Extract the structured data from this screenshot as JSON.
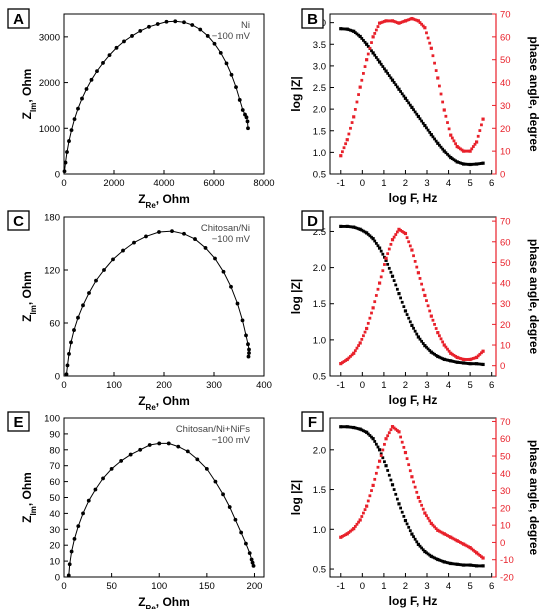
{
  "colors": {
    "magnitude": "#000000",
    "phase": "#e8202a",
    "nyquist": "#000000"
  },
  "chart_data": [
    {
      "panel": "A",
      "type": "scatter",
      "line": true,
      "annotation": [
        "Ni",
        "−100 mV"
      ],
      "xlabel": {
        "main": "Z",
        "sub": "Re",
        "unit": ", Ohm"
      },
      "ylabel": {
        "main": "Z",
        "sub": "Im",
        "unit": ", Ohm"
      },
      "xlim": [
        0,
        8000
      ],
      "ylim": [
        0,
        3500
      ],
      "xticks": [
        0,
        2000,
        4000,
        6000,
        8000
      ],
      "yticks": [
        0,
        1000,
        2000,
        3000
      ],
      "x": [
        20,
        60,
        120,
        200,
        300,
        420,
        560,
        720,
        900,
        1100,
        1320,
        1560,
        1820,
        2100,
        2400,
        2720,
        3050,
        3400,
        3750,
        4100,
        4450,
        4800,
        5130,
        5450,
        5750,
        6020,
        6270,
        6500,
        6700,
        6880,
        7030,
        7150,
        7240,
        7300,
        7340,
        7360
      ],
      "y": [
        60,
        250,
        480,
        720,
        960,
        1200,
        1430,
        1650,
        1860,
        2060,
        2250,
        2430,
        2600,
        2760,
        2900,
        3020,
        3130,
        3220,
        3280,
        3330,
        3340,
        3320,
        3260,
        3160,
        3020,
        2850,
        2650,
        2420,
        2170,
        1900,
        1620,
        1400,
        1300,
        1240,
        1150,
        1000
      ]
    },
    {
      "panel": "B",
      "type": "scatter",
      "xlabel": "log F, Hz",
      "ylabel": "log |Z|",
      "ylabel2": "phase angle, degree",
      "xlim": [
        -1.5,
        6.2
      ],
      "ylim": [
        0.5,
        4.2
      ],
      "y2lim": [
        0,
        70
      ],
      "xticks": [
        -1,
        0,
        1,
        2,
        3,
        4,
        5,
        6
      ],
      "yticks": [
        0.5,
        1.0,
        1.5,
        2.0,
        2.5,
        3.0,
        3.5,
        4.0
      ],
      "y2ticks": [
        0,
        10,
        20,
        30,
        40,
        50,
        60,
        70
      ],
      "series": [
        {
          "axis": "left",
          "x": [
            -1,
            -0.7,
            -0.4,
            -0.1,
            0.2,
            0.5,
            0.8,
            1.1,
            1.4,
            1.7,
            2.0,
            2.3,
            2.6,
            2.9,
            3.2,
            3.5,
            3.8,
            4.1,
            4.4,
            4.7,
            5.0,
            5.3,
            5.6
          ],
          "y": [
            3.86,
            3.85,
            3.8,
            3.68,
            3.5,
            3.3,
            3.09,
            2.88,
            2.67,
            2.46,
            2.25,
            2.04,
            1.83,
            1.62,
            1.41,
            1.21,
            1.03,
            0.88,
            0.78,
            0.73,
            0.72,
            0.73,
            0.75
          ]
        },
        {
          "axis": "right",
          "x": [
            -1,
            -0.7,
            -0.4,
            -0.1,
            0.2,
            0.5,
            0.8,
            1.1,
            1.4,
            1.7,
            2.0,
            2.3,
            2.6,
            2.9,
            3.2,
            3.5,
            3.8,
            4.1,
            4.4,
            4.7,
            5.0,
            5.3,
            5.6
          ],
          "y": [
            8,
            15,
            25,
            38,
            50,
            60,
            66,
            67,
            67,
            66,
            67,
            68,
            67,
            64,
            55,
            42,
            28,
            17,
            12,
            10,
            10,
            14,
            24
          ]
        }
      ]
    },
    {
      "panel": "C",
      "type": "scatter",
      "line": true,
      "annotation": [
        "Chitosan/Ni",
        "−100 mV"
      ],
      "xlabel": {
        "main": "Z",
        "sub": "Re",
        "unit": ", Ohm"
      },
      "ylabel": {
        "main": "Z",
        "sub": "Im",
        "unit": ", Ohm"
      },
      "xlim": [
        0,
        400
      ],
      "ylim": [
        0,
        180
      ],
      "xticks": [
        0,
        100,
        200,
        300,
        400
      ],
      "yticks": [
        0,
        60,
        120,
        180
      ],
      "x": [
        5,
        7,
        10,
        14,
        20,
        28,
        38,
        50,
        64,
        80,
        98,
        118,
        140,
        164,
        190,
        216,
        240,
        262,
        283,
        302,
        319,
        334,
        347,
        357,
        364,
        368,
        370,
        370,
        369
      ],
      "y": [
        2,
        12,
        25,
        38,
        52,
        66,
        80,
        94,
        108,
        120,
        132,
        142,
        151,
        158,
        163,
        164,
        161,
        155,
        145,
        133,
        118,
        101,
        82,
        63,
        46,
        36,
        30,
        26,
        22
      ]
    },
    {
      "panel": "D",
      "type": "scatter",
      "xlabel": "log F, Hz",
      "ylabel": "log |Z|",
      "ylabel2": "phase angle, degree",
      "xlim": [
        -1.5,
        6.2
      ],
      "ylim": [
        0.5,
        2.7
      ],
      "y2lim": [
        -5,
        72
      ],
      "xticks": [
        -1,
        0,
        1,
        2,
        3,
        4,
        5,
        6
      ],
      "yticks": [
        0.5,
        1.0,
        1.5,
        2.0,
        2.5
      ],
      "y2ticks": [
        0,
        10,
        20,
        30,
        40,
        50,
        60,
        70
      ],
      "series": [
        {
          "axis": "left",
          "x": [
            -1,
            -0.7,
            -0.4,
            -0.1,
            0.2,
            0.5,
            0.8,
            1.1,
            1.4,
            1.7,
            2.0,
            2.3,
            2.6,
            2.9,
            3.2,
            3.5,
            3.8,
            4.1,
            4.4,
            4.7,
            5.0,
            5.3,
            5.6
          ],
          "y": [
            2.57,
            2.57,
            2.56,
            2.53,
            2.48,
            2.4,
            2.27,
            2.1,
            1.88,
            1.64,
            1.4,
            1.2,
            1.04,
            0.92,
            0.83,
            0.77,
            0.73,
            0.71,
            0.69,
            0.68,
            0.67,
            0.67,
            0.66
          ]
        },
        {
          "axis": "right",
          "x": [
            -1,
            -0.7,
            -0.4,
            -0.1,
            0.2,
            0.5,
            0.8,
            1.1,
            1.4,
            1.7,
            2.0,
            2.3,
            2.6,
            2.9,
            3.2,
            3.5,
            3.8,
            4.1,
            4.4,
            4.7,
            5.0,
            5.3,
            5.6
          ],
          "y": [
            1,
            3,
            6,
            11,
            18,
            28,
            40,
            52,
            61,
            66,
            64,
            56,
            45,
            34,
            24,
            16,
            10,
            6,
            4,
            3,
            3,
            4,
            7
          ]
        }
      ]
    },
    {
      "panel": "E",
      "type": "scatter",
      "line": true,
      "annotation": [
        "Chitosan/Ni+NiFs",
        "−100 mV"
      ],
      "xlabel": {
        "main": "Z",
        "sub": "Re",
        "unit": ", Ohm"
      },
      "ylabel": {
        "main": "Z",
        "sub": "Im",
        "unit": ", Ohm"
      },
      "xlim": [
        0,
        210
      ],
      "ylim": [
        0,
        100
      ],
      "xticks": [
        0,
        50,
        100,
        150,
        200
      ],
      "yticks": [
        0,
        10,
        20,
        30,
        40,
        50,
        60,
        70,
        80,
        90,
        100
      ],
      "x": [
        5,
        6,
        8,
        11,
        15,
        20,
        26,
        33,
        41,
        50,
        60,
        70,
        80,
        90,
        100,
        110,
        120,
        130,
        140,
        150,
        159,
        167,
        174,
        180,
        186,
        191,
        195,
        197,
        198,
        199
      ],
      "y": [
        1,
        8,
        16,
        24,
        32,
        40,
        48,
        55,
        62,
        68,
        73,
        77,
        80,
        83,
        84,
        84,
        82,
        79,
        74,
        68,
        60,
        52,
        44,
        36,
        28,
        21,
        15,
        11,
        9,
        7
      ]
    },
    {
      "panel": "F",
      "type": "scatter",
      "xlabel": "log F, Hz",
      "ylabel": "log |Z|",
      "ylabel2": "phase angle, degree",
      "xlim": [
        -1.5,
        6.2
      ],
      "ylim": [
        0.4,
        2.4
      ],
      "y2lim": [
        -20,
        72
      ],
      "xticks": [
        -1,
        0,
        1,
        2,
        3,
        4,
        5,
        6
      ],
      "yticks": [
        0.5,
        1.0,
        1.5,
        2.0
      ],
      "y2ticks": [
        -20,
        -10,
        0,
        10,
        20,
        30,
        40,
        50,
        60,
        70
      ],
      "series": [
        {
          "axis": "left",
          "x": [
            -1,
            -0.7,
            -0.4,
            -0.1,
            0.2,
            0.5,
            0.8,
            1.1,
            1.4,
            1.7,
            2.0,
            2.3,
            2.6,
            2.9,
            3.2,
            3.5,
            3.8,
            4.1,
            4.4,
            4.7,
            5.0,
            5.3,
            5.6
          ],
          "y": [
            2.29,
            2.29,
            2.28,
            2.26,
            2.22,
            2.14,
            2.0,
            1.8,
            1.56,
            1.32,
            1.11,
            0.94,
            0.81,
            0.72,
            0.66,
            0.62,
            0.59,
            0.57,
            0.56,
            0.55,
            0.55,
            0.54,
            0.54
          ]
        },
        {
          "axis": "right",
          "x": [
            -1,
            -0.7,
            -0.4,
            -0.1,
            0.2,
            0.5,
            0.8,
            1.1,
            1.4,
            1.7,
            2.0,
            2.3,
            2.6,
            2.9,
            3.2,
            3.5,
            3.8,
            4.1,
            4.4,
            4.7,
            5.0,
            5.3,
            5.6
          ],
          "y": [
            3,
            5,
            8,
            13,
            21,
            33,
            47,
            60,
            67,
            64,
            52,
            38,
            26,
            17,
            11,
            7,
            5,
            3,
            1,
            -1,
            -3,
            -6,
            -9
          ]
        }
      ]
    }
  ]
}
